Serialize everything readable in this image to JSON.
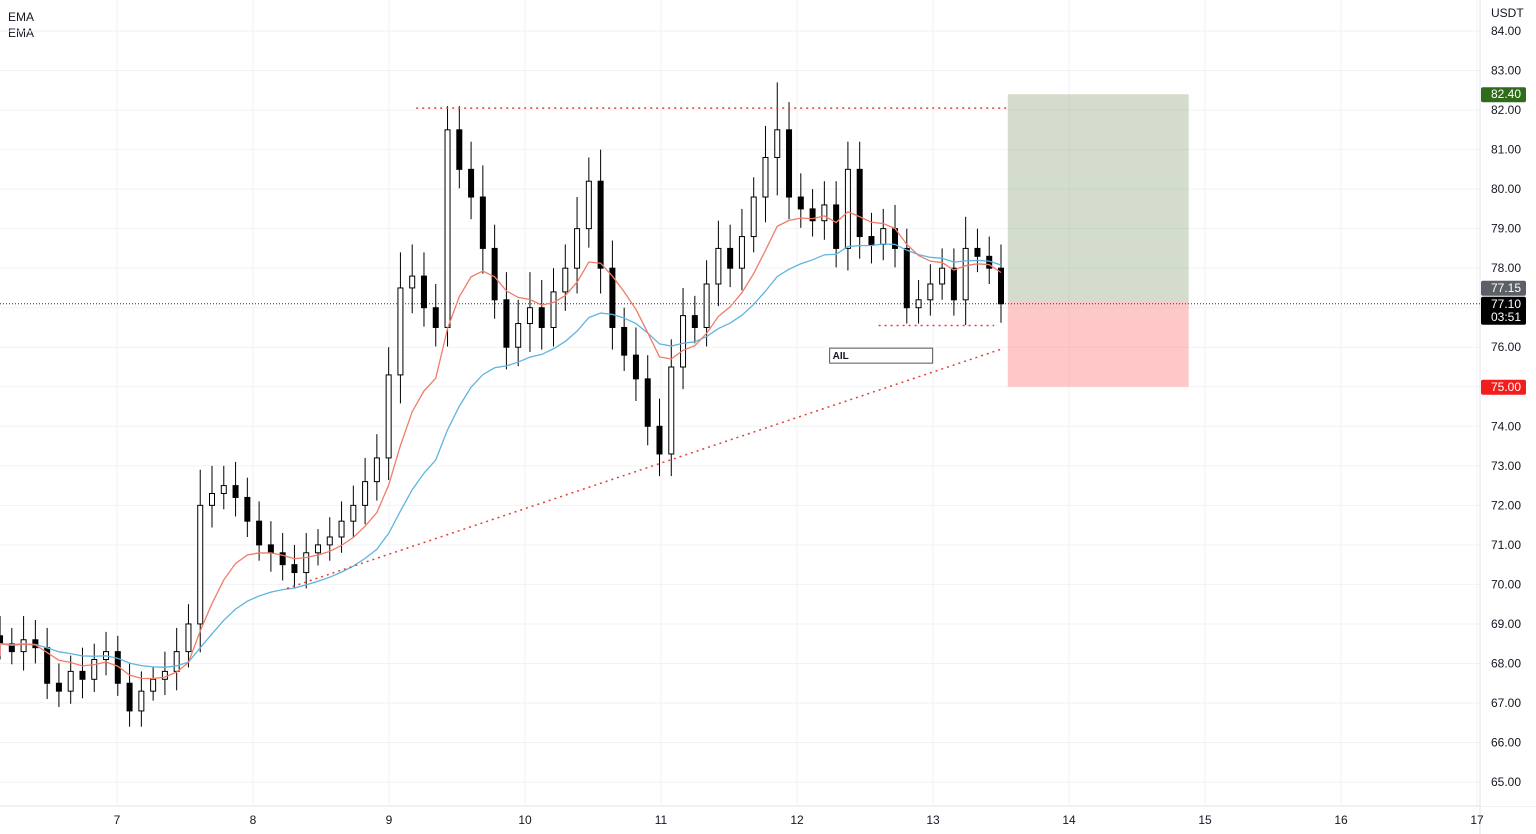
{
  "legend": [
    "EMA",
    "EMA"
  ],
  "chart_data": {
    "type": "candlestick",
    "currency": "USDT",
    "ylim": [
      64.6,
      84.4
    ],
    "xlim": [
      6.13,
      17.05
    ],
    "y_ticks": [
      "84.00",
      "83.00",
      "82.00",
      "81.00",
      "80.00",
      "79.00",
      "78.00",
      "76.00",
      "74.00",
      "73.00",
      "72.00",
      "71.00",
      "70.00",
      "69.00",
      "68.00",
      "67.00",
      "66.00",
      "65.00"
    ],
    "x_ticks": [
      "7",
      "8",
      "9",
      "10",
      "11",
      "12",
      "13",
      "14",
      "15",
      "16",
      "17"
    ],
    "candles": {
      "x_start": 6.14,
      "x_end": 13.5,
      "closes": [
        68.5,
        68.3,
        68.6,
        68.4,
        67.5,
        67.3,
        67.8,
        67.6,
        68.1,
        68.3,
        67.5,
        66.8,
        67.3,
        67.6,
        67.8,
        68.3,
        69.0,
        72.0,
        72.3,
        72.5,
        72.2,
        71.6,
        71.0,
        70.8,
        70.5,
        70.3,
        70.8,
        71.0,
        71.2,
        71.6,
        72.0,
        72.6,
        73.2,
        75.3,
        77.5,
        77.8,
        77.0,
        76.5,
        81.5,
        80.5,
        79.8,
        78.5,
        77.2,
        76.0,
        76.6,
        77.0,
        76.5,
        77.4,
        78.0,
        79.0,
        80.2,
        78.0,
        76.5,
        75.8,
        75.2,
        74.0,
        73.3,
        75.5,
        76.8,
        76.5,
        77.6,
        78.5,
        78.0,
        78.8,
        79.8,
        80.8,
        81.5,
        79.8,
        79.5,
        79.2,
        79.6,
        78.5,
        80.5,
        78.8,
        78.6,
        79.0,
        78.5,
        77.0,
        77.2,
        77.6,
        78.0,
        77.2,
        78.5,
        78.3,
        78.0,
        77.1
      ],
      "wicks": [
        0.5,
        0.4,
        0.6,
        0.5,
        0.5,
        0.5,
        0.4,
        0.6,
        0.4,
        0.5,
        0.4,
        0.5,
        0.5,
        0.3,
        0.5,
        0.6,
        0.5,
        0.9,
        0.7,
        0.5,
        0.6,
        0.5,
        0.5,
        0.6,
        0.5,
        0.5,
        0.5,
        0.4,
        0.5,
        0.5,
        0.5,
        0.6,
        0.6,
        0.7,
        0.9,
        0.8,
        0.6,
        0.6,
        0.6,
        0.6,
        0.7,
        0.8,
        0.6,
        0.7,
        0.6,
        0.9,
        0.7,
        0.6,
        0.6,
        0.8,
        0.6,
        0.8,
        0.7,
        0.5,
        0.7,
        0.6,
        0.7,
        0.7,
        0.7,
        0.5,
        0.6,
        0.7,
        0.6,
        0.7,
        0.5,
        0.8,
        1.2,
        0.7,
        0.6,
        0.5,
        0.6,
        0.6,
        0.7,
        0.7,
        0.6,
        0.5,
        0.6,
        0.5,
        0.5,
        0.5,
        0.5,
        0.5,
        0.8,
        0.5,
        0.5,
        0.6
      ]
    },
    "ema_fast_period": 9,
    "ema_slow_period": 21,
    "ema_fast_color": "#f07b68",
    "ema_slow_color": "#5fb4e0",
    "resistance": {
      "price": 82.05,
      "from": 9.2,
      "to": 13.55
    },
    "trendline": {
      "from": [
        8.25,
        69.9
      ],
      "to": [
        13.5,
        75.95
      ]
    },
    "support": {
      "price": 76.55,
      "from": 12.6,
      "to": 13.45
    },
    "position": {
      "from": 13.55,
      "to": 14.88,
      "entry": 77.15,
      "target": 82.4,
      "stop": 75.0
    },
    "price_tags": [
      {
        "label": "82.40",
        "price": 82.4,
        "color": "#2e6b1a"
      },
      {
        "label": "77.15",
        "price": 77.15,
        "color": "#5d5f66"
      },
      {
        "label": "77.10",
        "sub": "03:51",
        "price": 77.1,
        "color": "#000000"
      },
      {
        "label": "75.00",
        "price": 75.0,
        "color": "#f21d1d"
      }
    ],
    "current_price": 77.1,
    "annotation": {
      "text": "AIL",
      "day": 12.24,
      "price": 75.8
    }
  }
}
